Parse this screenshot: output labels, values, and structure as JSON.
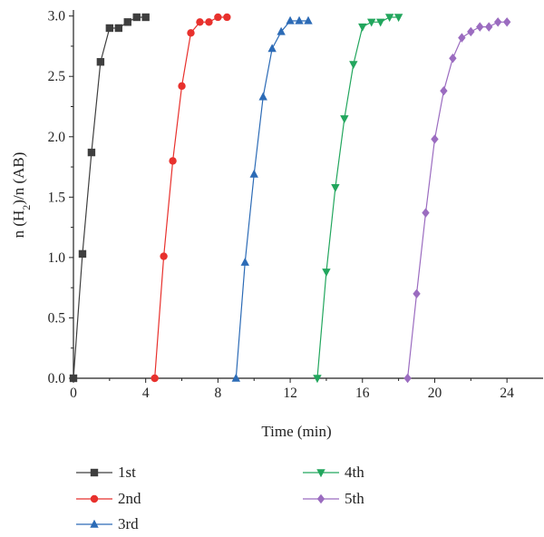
{
  "chart_data": {
    "type": "line",
    "xlabel": "Time (min)",
    "ylabel_parts": {
      "prefix": "n (H",
      "sub": "2",
      "suffix": ")/n (AB)"
    },
    "xlim": [
      0,
      26
    ],
    "ylim": [
      0,
      3.05
    ],
    "xticks": [
      0,
      4,
      8,
      12,
      16,
      20,
      24
    ],
    "xtick_labels": [
      "0",
      "4",
      "8",
      "12",
      "16",
      "20",
      "24"
    ],
    "yticks": [
      0,
      0.5,
      1.0,
      1.5,
      2.0,
      2.5,
      3.0
    ],
    "ytick_labels": [
      "0.0",
      "0.5",
      "1.0",
      "1.5",
      "2.0",
      "2.5",
      "3.0"
    ],
    "grid": false,
    "legend_position": "bottom",
    "series": [
      {
        "name": "1st",
        "color": "#3f3f3f",
        "marker": "square",
        "x": [
          0,
          0.5,
          1.0,
          1.5,
          2.0,
          2.5,
          3.0,
          3.5,
          4.0
        ],
        "y": [
          0.0,
          1.03,
          1.87,
          2.62,
          2.9,
          2.9,
          2.95,
          2.99,
          2.99
        ]
      },
      {
        "name": "2nd",
        "color": "#e8312d",
        "marker": "circle",
        "x": [
          4.5,
          5.0,
          5.5,
          6.0,
          6.5,
          7.0,
          7.5,
          8.0,
          8.5
        ],
        "y": [
          0.0,
          1.01,
          1.8,
          2.42,
          2.86,
          2.95,
          2.95,
          2.99,
          2.99
        ]
      },
      {
        "name": "3rd",
        "color": "#2c6bb6",
        "marker": "triangle-up",
        "x": [
          9.0,
          9.5,
          10.0,
          10.5,
          11.0,
          11.5,
          12.0,
          12.5,
          13.0
        ],
        "y": [
          0.0,
          0.96,
          1.69,
          2.33,
          2.73,
          2.87,
          2.96,
          2.96,
          2.96
        ]
      },
      {
        "name": "4th",
        "color": "#22a65d",
        "marker": "triangle-down",
        "x": [
          13.5,
          14.0,
          14.5,
          15.0,
          15.5,
          16.0,
          16.5,
          17.0,
          17.5,
          18.0
        ],
        "y": [
          0.0,
          0.88,
          1.58,
          2.15,
          2.6,
          2.91,
          2.95,
          2.95,
          2.99,
          2.99
        ]
      },
      {
        "name": "5th",
        "color": "#9b6cc0",
        "marker": "diamond",
        "x": [
          18.5,
          19.0,
          19.5,
          20.0,
          20.5,
          21.0,
          21.5,
          22.0,
          22.5,
          23.0,
          23.5,
          24.0
        ],
        "y": [
          0.0,
          0.7,
          1.37,
          1.98,
          2.38,
          2.65,
          2.82,
          2.87,
          2.91,
          2.91,
          2.95,
          2.95
        ]
      }
    ]
  }
}
